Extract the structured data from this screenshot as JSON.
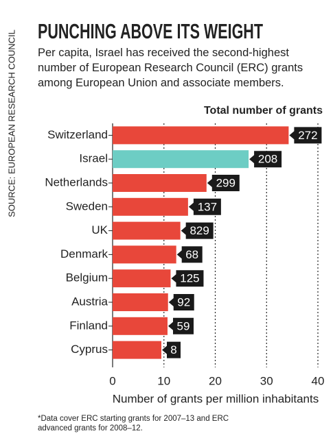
{
  "chart_data": {
    "type": "barh",
    "title": "PUNCHING ABOVE ITS WEIGHT",
    "subtitle": "Per capita, Israel has received the second-highest number of European Research Council (ERC) grants among European Union and associate members.",
    "source": "SOURCE: EUROPEAN RESEARCH COUNCIL",
    "footnote": "*Data cover ERC starting grants for 2007–13 and ERC advanced grants for 2008–12.",
    "xlabel": "Number of grants per million inhabitants",
    "totals_label": "Total number of grants",
    "categories": [
      "Switzerland",
      "Israel",
      "Netherlands",
      "Sweden",
      "UK",
      "Denmark",
      "Belgium",
      "Austria",
      "Finland",
      "Cyprus"
    ],
    "values": [
      34.3,
      26.5,
      18.3,
      14.7,
      13.2,
      12.4,
      11.3,
      10.8,
      10.7,
      9.5
    ],
    "totals": [
      272,
      208,
      299,
      137,
      829,
      68,
      125,
      92,
      59,
      8
    ],
    "colors": [
      "#e8473a",
      "#6dcdc4",
      "#e8473a",
      "#e8473a",
      "#e8473a",
      "#e8473a",
      "#e8473a",
      "#e8473a",
      "#e8473a",
      "#e8473a"
    ],
    "xlim": [
      0,
      40
    ],
    "xticks": [
      0,
      10,
      20,
      30,
      40
    ],
    "grid": true
  }
}
